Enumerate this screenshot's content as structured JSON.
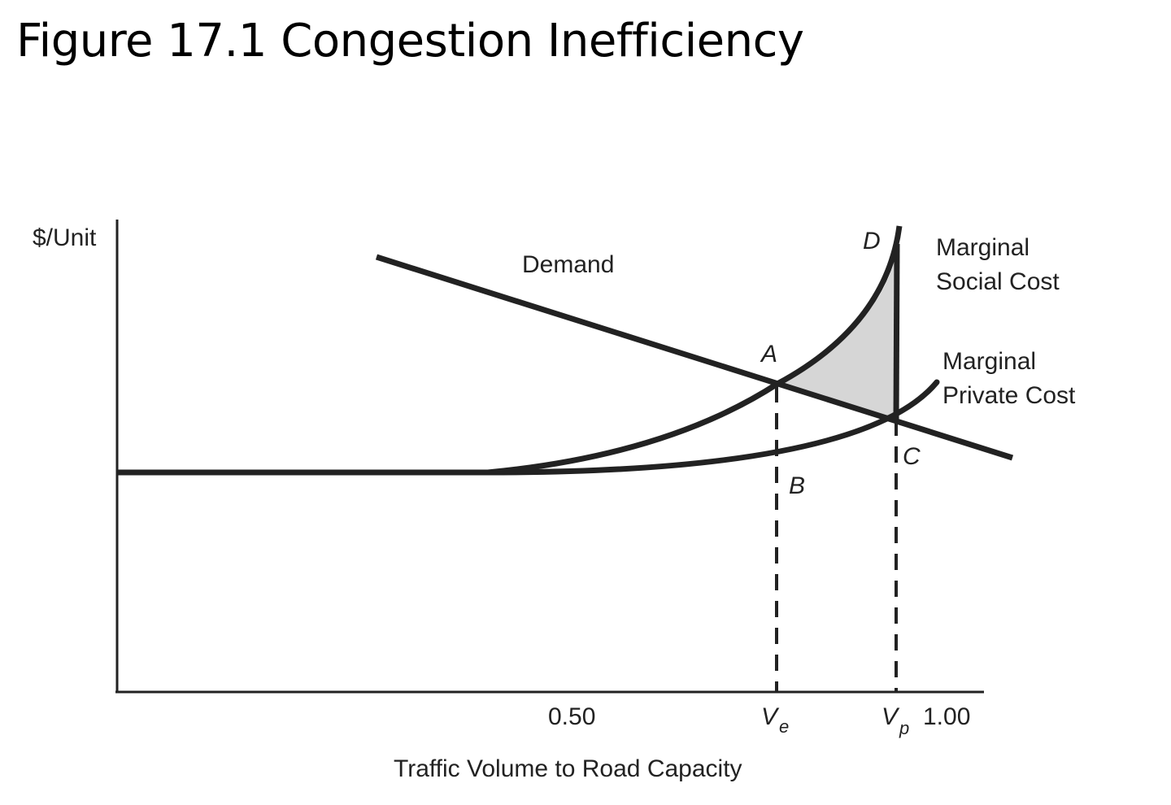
{
  "title": "Figure 17.1  Congestion Inefficiency",
  "y_axis_label": "$/Unit",
  "x_axis_label": "Traffic Volume to Road Capacity",
  "x_ticks": {
    "half": "0.50",
    "one": "1.00"
  },
  "curves": {
    "demand": "Demand",
    "msc_line1": "Marginal",
    "msc_line2": "Social Cost",
    "mpc_line1": "Marginal",
    "mpc_line2": "Private Cost"
  },
  "points": {
    "a": "A",
    "b": "B",
    "c": "C",
    "d": "D"
  },
  "volumes": {
    "ve_main": "V",
    "ve_sub": "e",
    "vp_main": "V",
    "vp_sub": "p"
  },
  "colors": {
    "line": "#222222",
    "shaded_area": "#d6d6d6"
  }
}
